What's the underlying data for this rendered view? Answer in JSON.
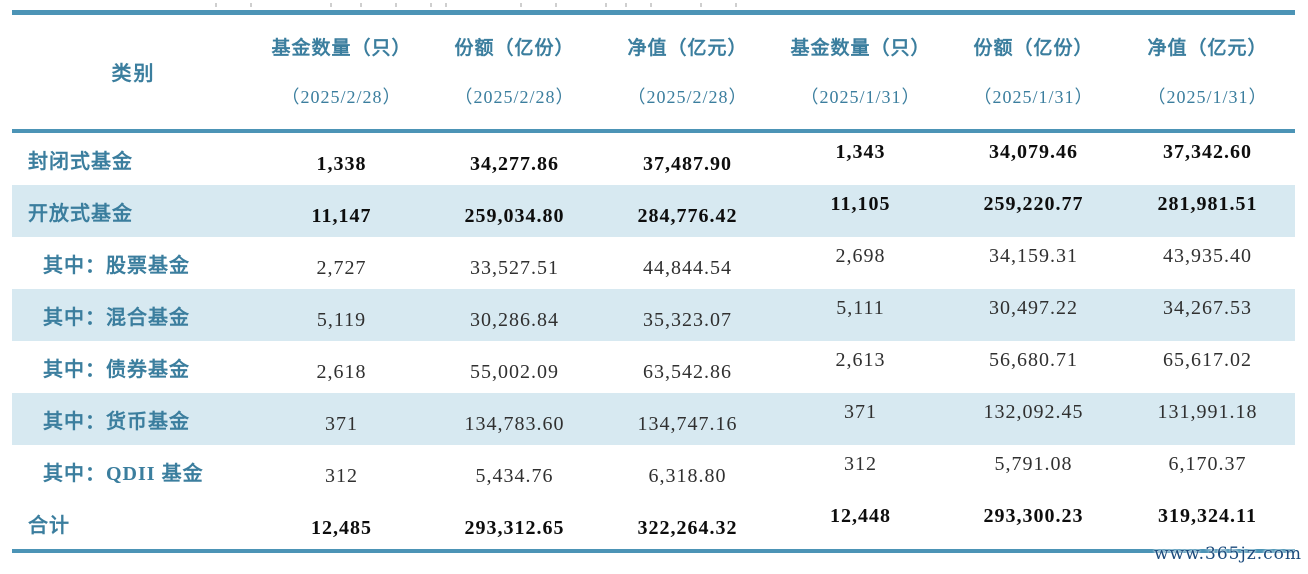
{
  "table": {
    "category_label": "类别",
    "header_columns": [
      {
        "title": "基金数量（只）",
        "date": "（2025/2/28）"
      },
      {
        "title": "份额（亿份）",
        "date": "（2025/2/28）"
      },
      {
        "title": "净值（亿元）",
        "date": "（2025/2/28）"
      },
      {
        "title": "基金数量（只）",
        "date": "（2025/1/31）"
      },
      {
        "title": "份额（亿份）",
        "date": "（2025/1/31）"
      },
      {
        "title": "净值（亿元）",
        "date": "（2025/1/31）"
      }
    ],
    "rows": [
      {
        "label": "封闭式基金",
        "values": [
          "1,338",
          "34,277.86",
          "37,487.90",
          "1,343",
          "34,079.46",
          "37,342.60"
        ],
        "bold": true,
        "striped": false,
        "indent": false
      },
      {
        "label": "开放式基金",
        "values": [
          "11,147",
          "259,034.80",
          "284,776.42",
          "11,105",
          "259,220.77",
          "281,981.51"
        ],
        "bold": true,
        "striped": true,
        "indent": false
      },
      {
        "label": "其中：股票基金",
        "values": [
          "2,727",
          "33,527.51",
          "44,844.54",
          "2,698",
          "34,159.31",
          "43,935.40"
        ],
        "bold": false,
        "striped": false,
        "indent": true
      },
      {
        "label": "其中：混合基金",
        "values": [
          "5,119",
          "30,286.84",
          "35,323.07",
          "5,111",
          "30,497.22",
          "34,267.53"
        ],
        "bold": false,
        "striped": true,
        "indent": true
      },
      {
        "label": "其中：债券基金",
        "values": [
          "2,618",
          "55,002.09",
          "63,542.86",
          "2,613",
          "56,680.71",
          "65,617.02"
        ],
        "bold": false,
        "striped": false,
        "indent": true
      },
      {
        "label": "其中：货币基金",
        "values": [
          "371",
          "134,783.60",
          "134,747.16",
          "371",
          "132,092.45",
          "131,991.18"
        ],
        "bold": false,
        "striped": true,
        "indent": true
      },
      {
        "label": "其中：QDII 基金",
        "values": [
          "312",
          "5,434.76",
          "6,318.80",
          "312",
          "5,791.08",
          "6,170.37"
        ],
        "bold": false,
        "striped": false,
        "indent": true
      },
      {
        "label": "合计",
        "values": [
          "12,485",
          "293,312.65",
          "322,264.32",
          "12,448",
          "293,300.23",
          "319,324.11"
        ],
        "bold": true,
        "striped": false,
        "indent": false
      }
    ]
  },
  "watermark": "www.365jz.com",
  "colors": {
    "rule_line": "#4c94b6",
    "heading_text": "#3b7e9e",
    "stripe_background": "#d7e9f1",
    "number_text": "#303030",
    "number_text_bold": "#0d0d0d",
    "watermark_text": "#1c4b7c"
  },
  "chart_data": {
    "type": "table",
    "title": "",
    "columns": [
      "类别",
      "基金数量（只）（2025/2/28）",
      "份额（亿份）（2025/2/28）",
      "净值（亿元）（2025/2/28）",
      "基金数量（只）（2025/1/31）",
      "份额（亿份）（2025/1/31）",
      "净值（亿元）（2025/1/31）"
    ],
    "rows": [
      [
        "封闭式基金",
        1338,
        34277.86,
        37487.9,
        1343,
        34079.46,
        37342.6
      ],
      [
        "开放式基金",
        11147,
        259034.8,
        284776.42,
        11105,
        259220.77,
        281981.51
      ],
      [
        "其中：股票基金",
        2727,
        33527.51,
        44844.54,
        2698,
        34159.31,
        43935.4
      ],
      [
        "其中：混合基金",
        5119,
        30286.84,
        35323.07,
        5111,
        30497.22,
        34267.53
      ],
      [
        "其中：债券基金",
        2618,
        55002.09,
        63542.86,
        2613,
        56680.71,
        65617.02
      ],
      [
        "其中：货币基金",
        371,
        134783.6,
        134747.16,
        371,
        132092.45,
        131991.18
      ],
      [
        "其中：QDII 基金",
        312,
        5434.76,
        6318.8,
        312,
        5791.08,
        6170.37
      ],
      [
        "合计",
        12485,
        293312.65,
        322264.32,
        12448,
        293300.23,
        319324.11
      ]
    ]
  }
}
